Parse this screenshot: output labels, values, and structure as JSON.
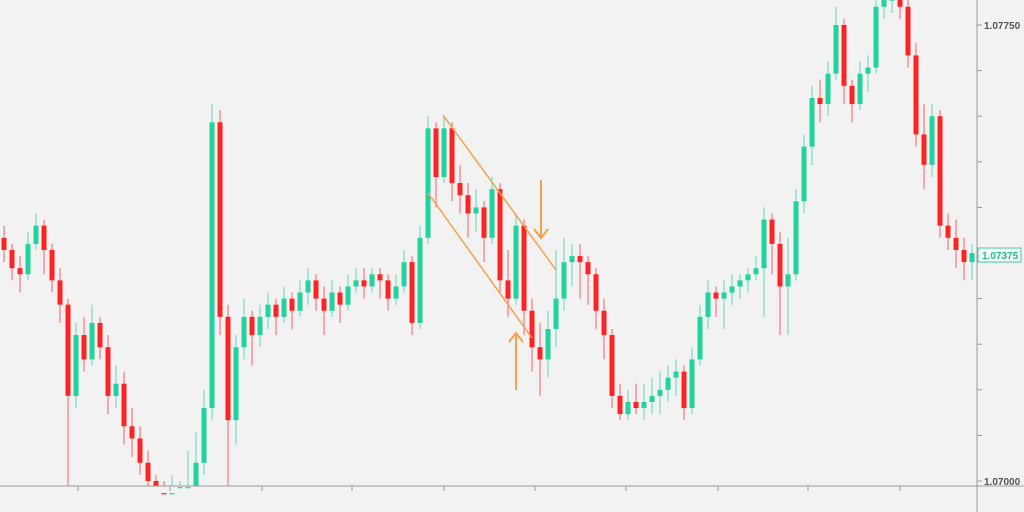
{
  "chart_data": {
    "type": "candlestick",
    "title": "",
    "xlabel": "",
    "ylabel": "",
    "ylim": [
      1.07,
      1.0775
    ],
    "y_tick_step": 0.00075,
    "y_tick_labels": [
      "1.07750",
      "1.07000"
    ],
    "current_price": "1.07375",
    "grid": false,
    "colors": {
      "up": "#22d3a0",
      "down": "#ff2222",
      "annotation": "#f5a04a",
      "axis": "#888888",
      "background": "#f2f2f2"
    },
    "candles_ohlc": [
      [
        1.074,
        1.0742,
        1.0736,
        1.0738
      ],
      [
        1.0738,
        1.0739,
        1.0733,
        1.0735
      ],
      [
        1.0735,
        1.0737,
        1.0731,
        1.0734
      ],
      [
        1.0734,
        1.0741,
        1.0733,
        1.0739
      ],
      [
        1.0739,
        1.0744,
        1.0738,
        1.0742
      ],
      [
        1.0742,
        1.0743,
        1.0734,
        1.0738
      ],
      [
        1.0738,
        1.0739,
        1.0731,
        1.0733
      ],
      [
        1.0733,
        1.0735,
        1.0726,
        1.0729
      ],
      [
        1.0729,
        1.073,
        1.0698,
        1.0714
      ],
      [
        1.0714,
        1.0726,
        1.0712,
        1.0724
      ],
      [
        1.0724,
        1.0727,
        1.0718,
        1.072
      ],
      [
        1.072,
        1.0729,
        1.0719,
        1.0726
      ],
      [
        1.0726,
        1.0727,
        1.072,
        1.0722
      ],
      [
        1.0722,
        1.0724,
        1.0711,
        1.0714
      ],
      [
        1.0714,
        1.0719,
        1.0712,
        1.0716
      ],
      [
        1.0716,
        1.0718,
        1.0706,
        1.0709
      ],
      [
        1.0709,
        1.0712,
        1.0704,
        1.0707
      ],
      [
        1.0707,
        1.0709,
        1.0701,
        1.0703
      ],
      [
        1.0703,
        1.0705,
        1.0698,
        1.07
      ],
      [
        1.07,
        1.0701,
        1.0696,
        1.0698
      ],
      [
        1.0698,
        1.07,
        1.0695,
        1.0697
      ],
      [
        1.0697,
        1.0701,
        1.0696,
        1.0698
      ],
      [
        1.0698,
        1.07,
        1.0696,
        1.0699
      ],
      [
        1.0699,
        1.0705,
        1.0697,
        1.0699
      ],
      [
        1.0699,
        1.0708,
        1.0697,
        1.0703
      ],
      [
        1.0703,
        1.0715,
        1.0701,
        1.0712
      ],
      [
        1.0712,
        1.0762,
        1.071,
        1.0759
      ],
      [
        1.0759,
        1.0761,
        1.0724,
        1.0727
      ],
      [
        1.0727,
        1.0729,
        1.0698,
        1.071
      ],
      [
        1.071,
        1.0724,
        1.0706,
        1.0722
      ],
      [
        1.0722,
        1.073,
        1.072,
        1.0727
      ],
      [
        1.0727,
        1.0728,
        1.0719,
        1.0724
      ],
      [
        1.0724,
        1.0729,
        1.0722,
        1.0727
      ],
      [
        1.0727,
        1.0731,
        1.0725,
        1.0729
      ],
      [
        1.0729,
        1.073,
        1.0724,
        1.0727
      ],
      [
        1.0727,
        1.0732,
        1.0726,
        1.073
      ],
      [
        1.073,
        1.0731,
        1.0725,
        1.0728
      ],
      [
        1.0728,
        1.0733,
        1.0727,
        1.0731
      ],
      [
        1.0731,
        1.0735,
        1.0729,
        1.0733
      ],
      [
        1.0733,
        1.0734,
        1.0728,
        1.073
      ],
      [
        1.073,
        1.0732,
        1.0724,
        1.0728
      ],
      [
        1.0728,
        1.0733,
        1.0727,
        1.0731
      ],
      [
        1.0731,
        1.0732,
        1.0726,
        1.0729
      ],
      [
        1.0729,
        1.0734,
        1.0728,
        1.0732
      ],
      [
        1.0732,
        1.0735,
        1.0731,
        1.0733
      ],
      [
        1.0733,
        1.0735,
        1.073,
        1.0732
      ],
      [
        1.0732,
        1.0735,
        1.0731,
        1.0734
      ],
      [
        1.0734,
        1.0735,
        1.073,
        1.0733
      ],
      [
        1.0733,
        1.0734,
        1.0728,
        1.073
      ],
      [
        1.073,
        1.0734,
        1.0729,
        1.0732
      ],
      [
        1.0732,
        1.0738,
        1.0731,
        1.0736
      ],
      [
        1.0736,
        1.0737,
        1.0724,
        1.0726
      ],
      [
        1.0726,
        1.0742,
        1.0725,
        1.074
      ],
      [
        1.074,
        1.076,
        1.0739,
        1.0758
      ],
      [
        1.0758,
        1.0759,
        1.0745,
        1.075
      ],
      [
        1.075,
        1.076,
        1.0749,
        1.0758
      ],
      [
        1.0758,
        1.0759,
        1.0746,
        1.0749
      ],
      [
        1.0749,
        1.0752,
        1.0744,
        1.0747
      ],
      [
        1.0747,
        1.0749,
        1.074,
        1.0744
      ],
      [
        1.0744,
        1.0748,
        1.0741,
        1.0745
      ],
      [
        1.0745,
        1.0746,
        1.0736,
        1.074
      ],
      [
        1.074,
        1.075,
        1.0739,
        1.0748
      ],
      [
        1.0748,
        1.0749,
        1.0731,
        1.0733
      ],
      [
        1.0733,
        1.0738,
        1.0727,
        1.073
      ],
      [
        1.073,
        1.0744,
        1.0729,
        1.0742
      ],
      [
        1.0742,
        1.0743,
        1.0724,
        1.0728
      ],
      [
        1.0728,
        1.073,
        1.0718,
        1.0722
      ],
      [
        1.0722,
        1.0726,
        1.0714,
        1.072
      ],
      [
        1.072,
        1.0728,
        1.0717,
        1.0725
      ],
      [
        1.0725,
        1.0738,
        1.0722,
        1.073
      ],
      [
        1.073,
        1.074,
        1.0728,
        1.0736
      ],
      [
        1.0736,
        1.0739,
        1.0732,
        1.0737
      ],
      [
        1.0737,
        1.0739,
        1.073,
        1.0736
      ],
      [
        1.0736,
        1.0737,
        1.0729,
        1.0734
      ],
      [
        1.0734,
        1.0735,
        1.0725,
        1.0728
      ],
      [
        1.0728,
        1.073,
        1.072,
        1.0724
      ],
      [
        1.0724,
        1.0725,
        1.0712,
        1.0714
      ],
      [
        1.0714,
        1.0716,
        1.071,
        1.0711
      ],
      [
        1.0711,
        1.0715,
        1.071,
        1.0713
      ],
      [
        1.0713,
        1.0716,
        1.0711,
        1.0712
      ],
      [
        1.0712,
        1.0716,
        1.071,
        1.0713
      ],
      [
        1.0713,
        1.0717,
        1.0711,
        1.0714
      ],
      [
        1.0714,
        1.0718,
        1.0711,
        1.0715
      ],
      [
        1.0715,
        1.0719,
        1.0713,
        1.0717
      ],
      [
        1.0717,
        1.072,
        1.0714,
        1.0718
      ],
      [
        1.0718,
        1.0719,
        1.071,
        1.0712
      ],
      [
        1.0712,
        1.0722,
        1.0711,
        1.072
      ],
      [
        1.072,
        1.0729,
        1.0719,
        1.0727
      ],
      [
        1.0727,
        1.0733,
        1.0725,
        1.0731
      ],
      [
        1.0731,
        1.0732,
        1.0727,
        1.073
      ],
      [
        1.073,
        1.0733,
        1.0725,
        1.0731
      ],
      [
        1.0731,
        1.0734,
        1.0729,
        1.0732
      ],
      [
        1.0732,
        1.0734,
        1.073,
        1.0733
      ],
      [
        1.0733,
        1.0735,
        1.0731,
        1.0734
      ],
      [
        1.0734,
        1.0737,
        1.0733,
        1.0735
      ],
      [
        1.0735,
        1.0745,
        1.0727,
        1.0743
      ],
      [
        1.0743,
        1.0744,
        1.0734,
        1.0739
      ],
      [
        1.0739,
        1.0741,
        1.0724,
        1.0732
      ],
      [
        1.0732,
        1.074,
        1.0724,
        1.0734
      ],
      [
        1.0734,
        1.0748,
        1.0733,
        1.0746
      ],
      [
        1.0746,
        1.0757,
        1.0744,
        1.0755
      ],
      [
        1.0755,
        1.0765,
        1.0752,
        1.0763
      ],
      [
        1.0763,
        1.0766,
        1.0759,
        1.0762
      ],
      [
        1.0762,
        1.0769,
        1.076,
        1.0767
      ],
      [
        1.0767,
        1.0778,
        1.0766,
        1.0775
      ],
      [
        1.0775,
        1.0776,
        1.0762,
        1.0765
      ],
      [
        1.0765,
        1.0766,
        1.0759,
        1.0762
      ],
      [
        1.0762,
        1.0769,
        1.0761,
        1.0767
      ],
      [
        1.0767,
        1.077,
        1.0764,
        1.0768
      ],
      [
        1.0768,
        1.078,
        1.0767,
        1.0778
      ],
      [
        1.0778,
        1.0781,
        1.0776,
        1.078
      ],
      [
        1.0779,
        1.0782,
        1.0777,
        1.078
      ],
      [
        1.078,
        1.0782,
        1.0776,
        1.0778
      ],
      [
        1.0778,
        1.078,
        1.0768,
        1.077
      ],
      [
        1.077,
        1.0772,
        1.0755,
        1.0757
      ],
      [
        1.0757,
        1.0762,
        1.0748,
        1.0752
      ],
      [
        1.0752,
        1.0762,
        1.075,
        1.076
      ],
      [
        1.076,
        1.0761,
        1.074,
        1.0742
      ],
      [
        1.0742,
        1.0744,
        1.0738,
        1.074
      ],
      [
        1.074,
        1.0743,
        1.0735,
        1.0738
      ],
      [
        1.0738,
        1.074,
        1.0733,
        1.0736
      ],
      [
        1.0736,
        1.0739,
        1.0733,
        1.07375
      ]
    ]
  }
}
